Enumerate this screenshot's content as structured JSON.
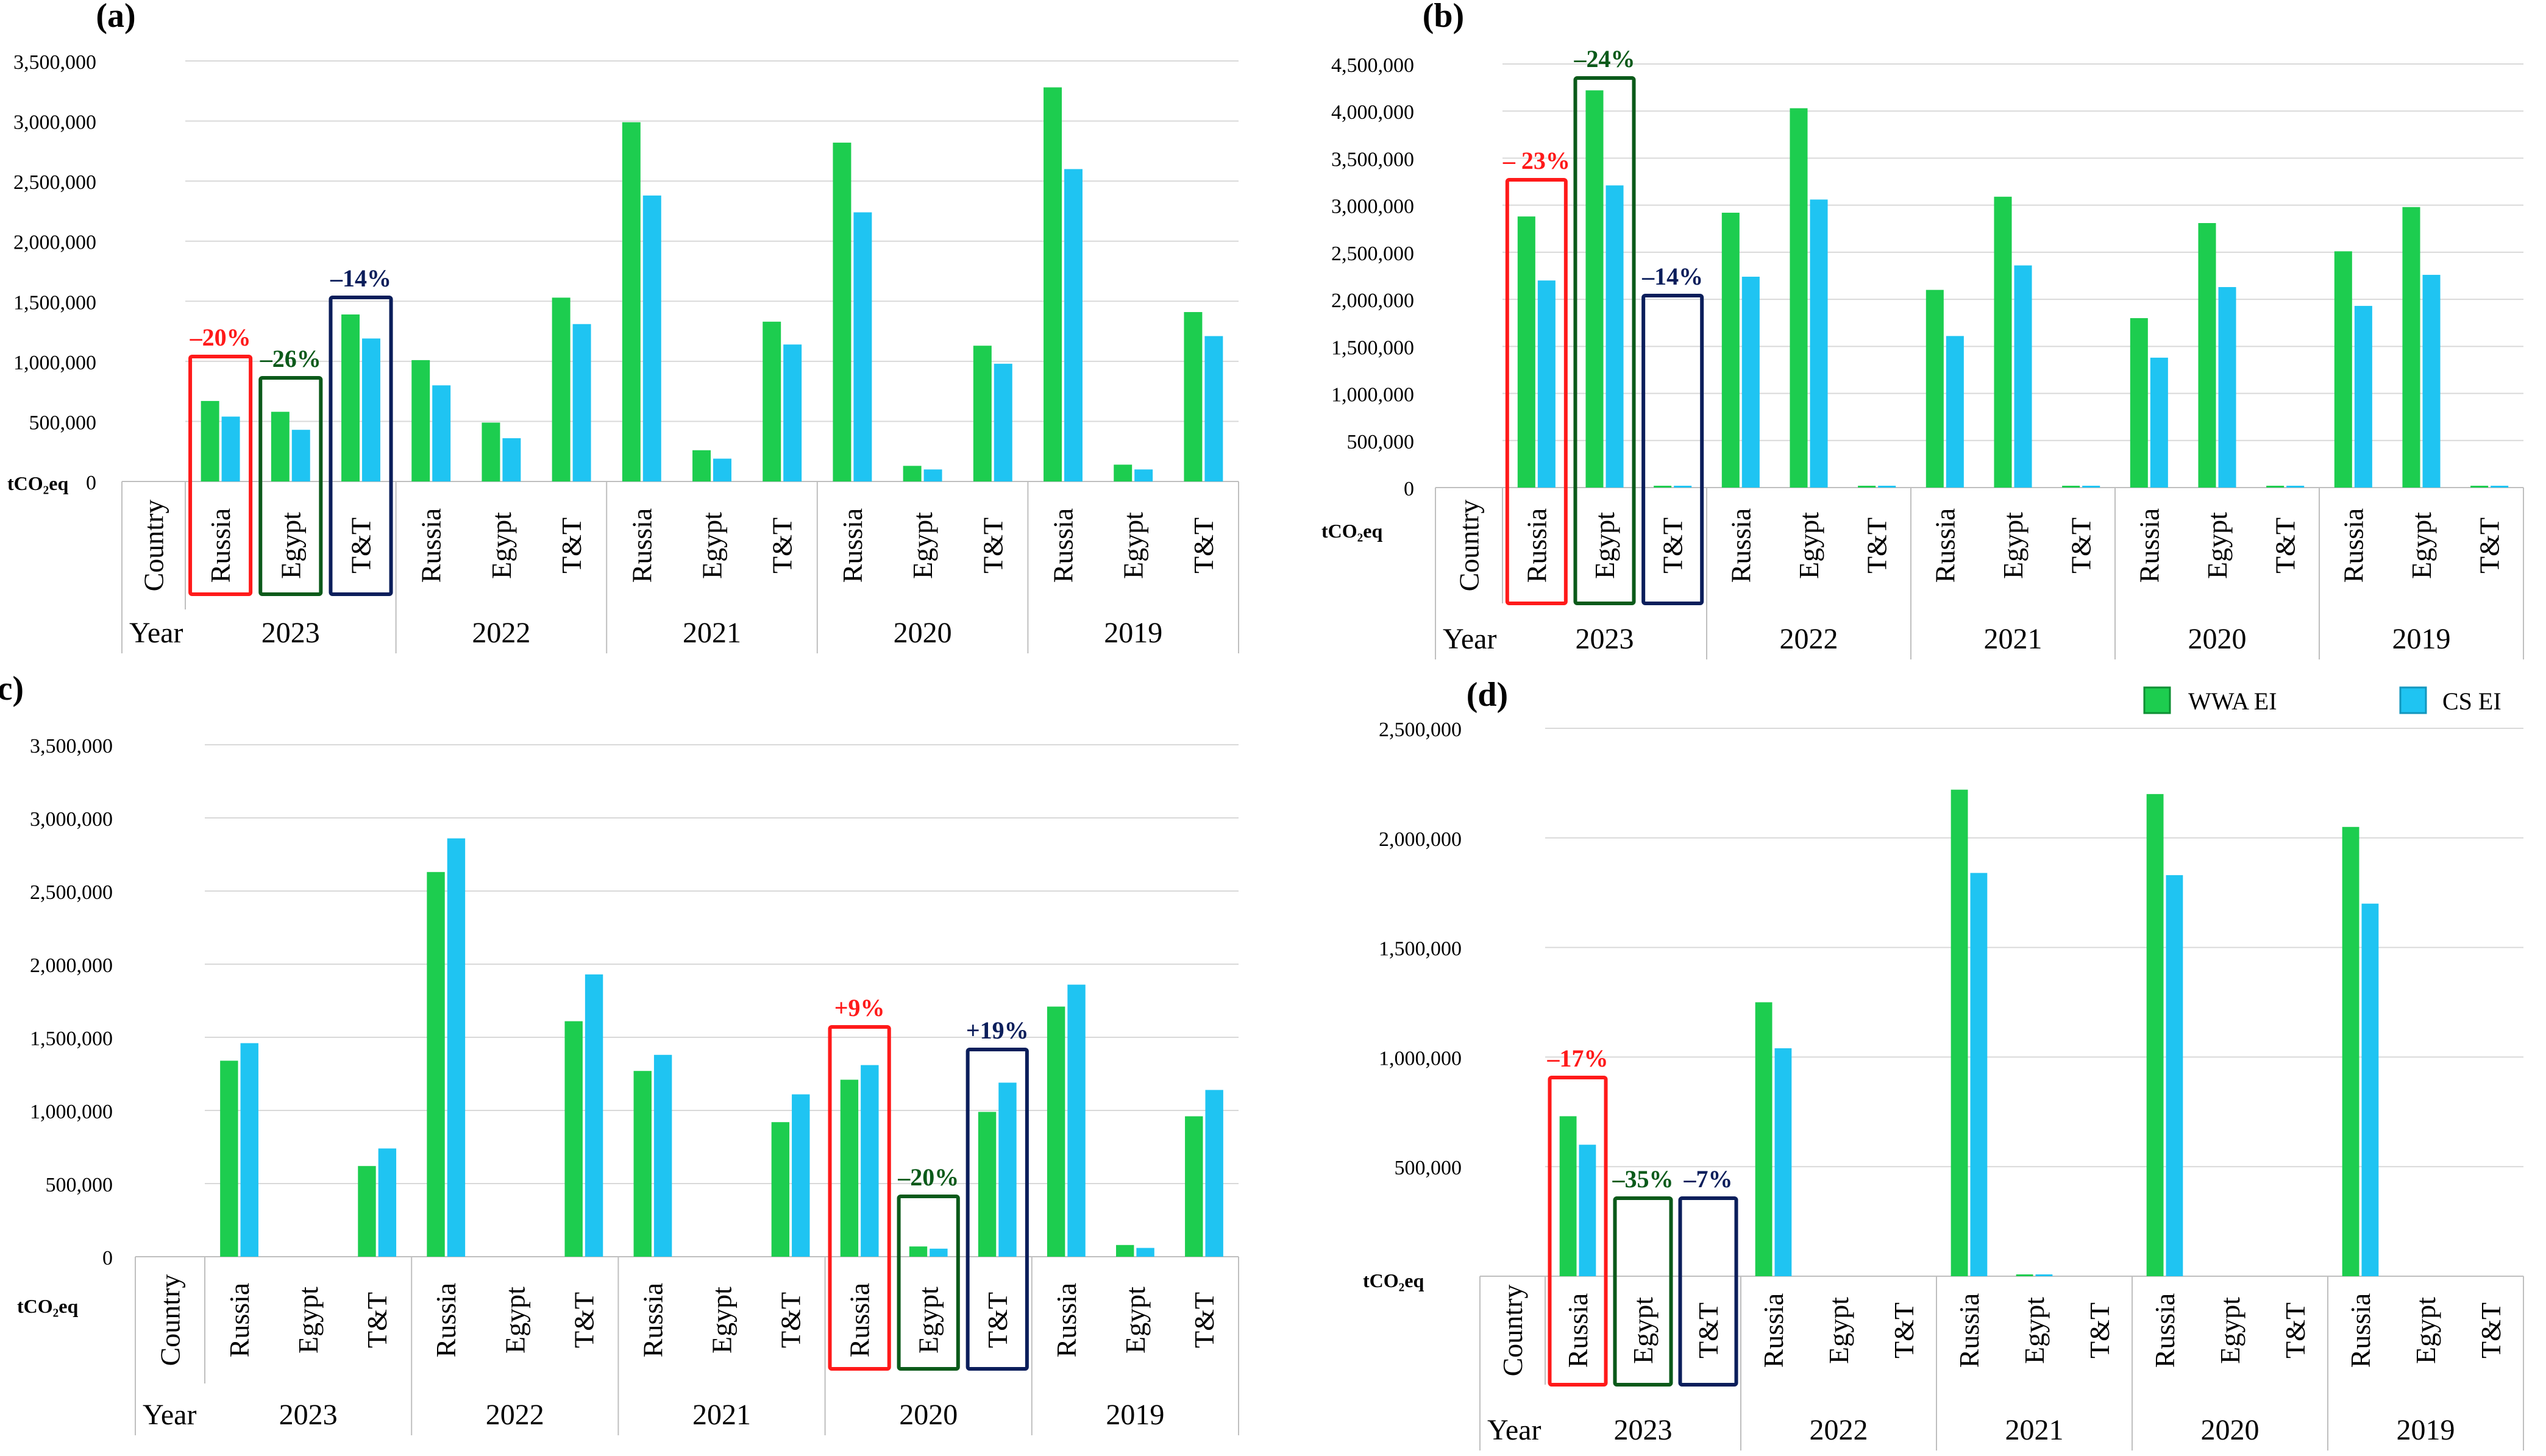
{
  "colors": {
    "wwa": "#1DCD4F",
    "cs": "#1FC4F2",
    "red": "#FF1A1A",
    "green": "#0B5A1A",
    "navy": "#0B1E5B",
    "grid": "#D9D9D9",
    "axis": "#BFBFBF",
    "text": "#000000"
  },
  "legend": {
    "wwa": "WWA EI",
    "cs": "CS EI"
  },
  "labels": {
    "unit": "tCO₂eq",
    "country": "Country",
    "year": "Year"
  },
  "chart_data": [
    {
      "panel": "(a)",
      "type": "bar",
      "years": [
        "2023",
        "2022",
        "2021",
        "2020",
        "2019"
      ],
      "countries": [
        "Russia",
        "Egypt",
        "T&T"
      ],
      "yticks": [
        "0",
        "500,000",
        "1,000,000",
        "1,500,000",
        "2,000,000",
        "2,500,000",
        "3,000,000",
        "3,500,000"
      ],
      "ylim": [
        0,
        3500000
      ],
      "series": [
        {
          "name": "WWA EI",
          "values": [
            670000,
            580000,
            1390000,
            1010000,
            490000,
            1530000,
            2990000,
            260000,
            1330000,
            2820000,
            130000,
            1130000,
            3280000,
            140000,
            1410000
          ]
        },
        {
          "name": "CS EI",
          "values": [
            540000,
            430000,
            1190000,
            800000,
            360000,
            1310000,
            2380000,
            190000,
            1140000,
            2240000,
            100000,
            980000,
            2600000,
            100000,
            1210000
          ]
        }
      ],
      "highlights": [
        {
          "index": 0,
          "text": "–20%",
          "color": "#FF1A1A"
        },
        {
          "index": 1,
          "text": "–26%",
          "color": "#0B5A1A"
        },
        {
          "index": 2,
          "text": "–14%",
          "color": "#0B1E5B"
        }
      ]
    },
    {
      "panel": "(b)",
      "type": "bar",
      "years": [
        "2023",
        "2022",
        "2021",
        "2020",
        "2019"
      ],
      "countries": [
        "Russia",
        "Egypt",
        "T&T"
      ],
      "yticks": [
        "0",
        "500,000",
        "1,000,000",
        "1,500,000",
        "2,000,000",
        "2,500,000",
        "3,000,000",
        "3,500,000",
        "4,000,000",
        "4,500,000"
      ],
      "ylim": [
        0,
        4500000
      ],
      "series": [
        {
          "name": "WWA EI",
          "values": [
            2880000,
            4220000,
            12000,
            2920000,
            4030000,
            12000,
            2100000,
            3090000,
            10000,
            1800000,
            2810000,
            10000,
            2510000,
            2980000,
            12000
          ]
        },
        {
          "name": "CS EI",
          "values": [
            2200000,
            3210000,
            10000,
            2240000,
            3060000,
            10000,
            1610000,
            2360000,
            8000,
            1380000,
            2130000,
            8000,
            1930000,
            2260000,
            10000
          ]
        }
      ],
      "highlights": [
        {
          "index": 0,
          "text": "– 23%",
          "color": "#FF1A1A"
        },
        {
          "index": 1,
          "text": "–24%",
          "color": "#0B5A1A"
        },
        {
          "index": 2,
          "text": "–14%",
          "color": "#0B1E5B"
        }
      ]
    },
    {
      "panel": "(c)",
      "type": "bar",
      "years": [
        "2023",
        "2022",
        "2021",
        "2020",
        "2019"
      ],
      "countries": [
        "Russia",
        "Egypt",
        "T&T"
      ],
      "yticks": [
        "0",
        "500,000",
        "1,000,000",
        "1,500,000",
        "2,000,000",
        "2,500,000",
        "3,000,000",
        "3,500,000"
      ],
      "ylim": [
        0,
        3500000
      ],
      "series": [
        {
          "name": "WWA EI",
          "values": [
            1340000,
            0,
            620000,
            2630000,
            0,
            1610000,
            1270000,
            0,
            920000,
            1210000,
            70000,
            990000,
            1710000,
            80000,
            960000
          ]
        },
        {
          "name": "CS EI",
          "values": [
            1460000,
            0,
            740000,
            2860000,
            0,
            1930000,
            1380000,
            0,
            1110000,
            1310000,
            55000,
            1190000,
            1860000,
            60000,
            1140000
          ]
        }
      ],
      "highlights": [
        {
          "index": 9,
          "text": "+9%",
          "color": "#FF1A1A"
        },
        {
          "index": 10,
          "text": "–20%",
          "color": "#0B5A1A"
        },
        {
          "index": 11,
          "text": "+19%",
          "color": "#0B1E5B"
        }
      ]
    },
    {
      "panel": "(d)",
      "type": "bar",
      "years": [
        "2023",
        "2022",
        "2021",
        "2020",
        "2019"
      ],
      "countries": [
        "Russia",
        "Egypt",
        "T&T"
      ],
      "yticks": [
        "500,000",
        "1,000,000",
        "1,500,000",
        "2,000,000",
        "2,500,000"
      ],
      "ylim": [
        0,
        2500000
      ],
      "series": [
        {
          "name": "WWA EI",
          "values": [
            730000,
            0,
            0,
            1250000,
            0,
            0,
            2220000,
            5000,
            0,
            2200000,
            0,
            0,
            2050000,
            0,
            0
          ]
        },
        {
          "name": "CS EI",
          "values": [
            600000,
            0,
            0,
            1040000,
            0,
            0,
            1840000,
            4000,
            0,
            1830000,
            0,
            0,
            1700000,
            0,
            0
          ]
        }
      ],
      "highlights": [
        {
          "index": 0,
          "text": "–17%",
          "color": "#FF1A1A"
        },
        {
          "index": 1,
          "text": "–35%",
          "color": "#0B5A1A"
        },
        {
          "index": 2,
          "text": "–7%",
          "color": "#0B1E5B"
        }
      ]
    }
  ]
}
